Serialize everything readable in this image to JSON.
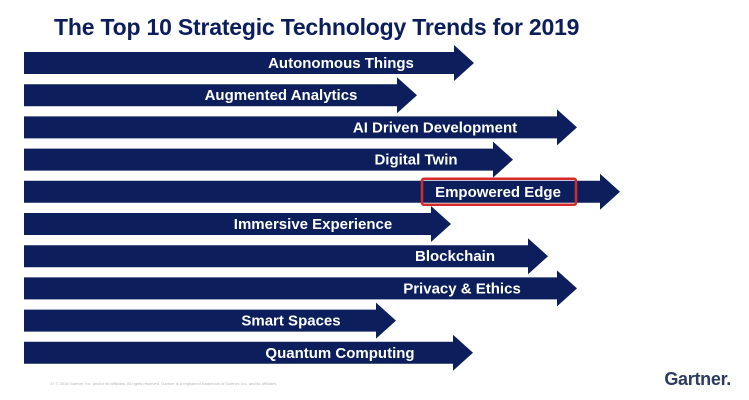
{
  "slide": {
    "title": "The Top 10 Strategic Technology Trends for 2019",
    "footer_note": "47  © 2018 Gartner, Inc. and/or its affiliates. All rights reserved. Gartner is a registered trademark of Gartner, Inc. and its affiliates.",
    "logo": "Gartner",
    "logo_dot": "."
  },
  "colors": {
    "arrow_fill": "#0c1f5c",
    "highlight_border": "#d42a2a",
    "title": "#0b1e5b"
  },
  "trends": [
    {
      "label": "Autonomous Things",
      "highlighted": false
    },
    {
      "label": "Augmented Analytics",
      "highlighted": false
    },
    {
      "label": "AI Driven Development",
      "highlighted": false
    },
    {
      "label": "Digital Twin",
      "highlighted": false
    },
    {
      "label": "Empowered Edge",
      "highlighted": true
    },
    {
      "label": "Immersive Experience",
      "highlighted": false
    },
    {
      "label": "Blockchain",
      "highlighted": false
    },
    {
      "label": "Privacy & Ethics",
      "highlighted": false
    },
    {
      "label": "Smart Spaces",
      "highlighted": false
    },
    {
      "label": "Quantum Computing",
      "highlighted": false
    }
  ]
}
